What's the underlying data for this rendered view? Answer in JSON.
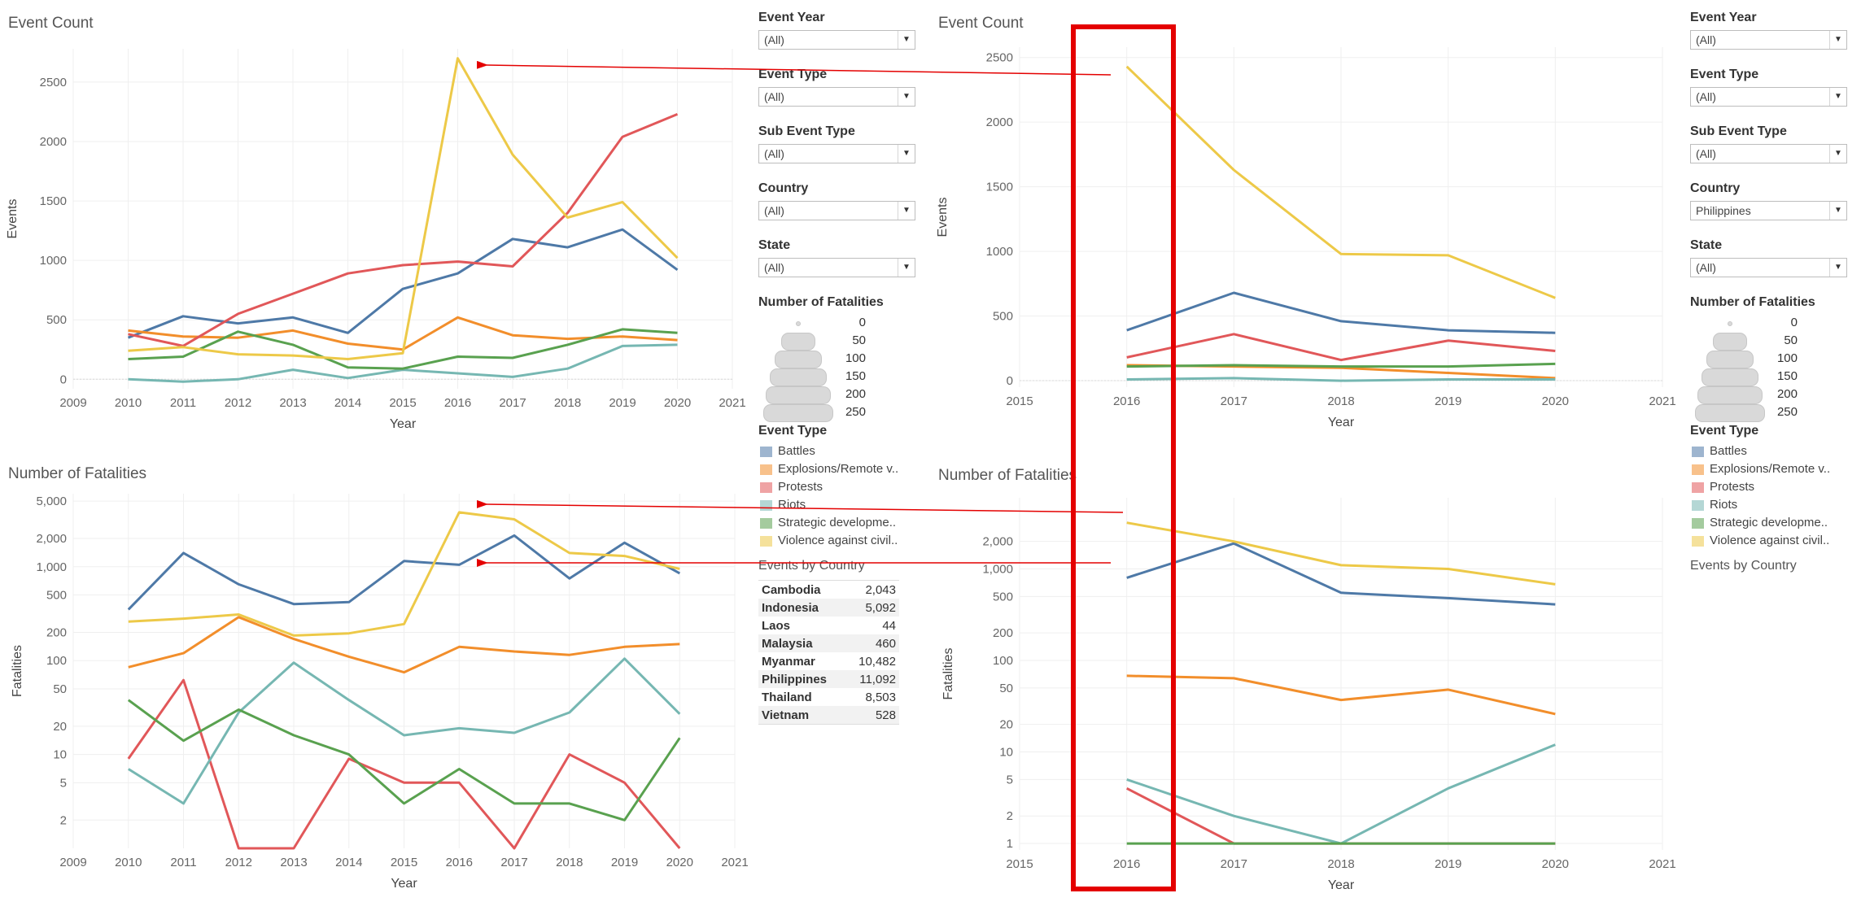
{
  "colors": {
    "Battles": "#4e79a7",
    "Explosions": "#f28e2b",
    "Protests": "#e15759",
    "Riots": "#76b7b2",
    "Strategic": "#59a14f",
    "Violence": "#edc948",
    "arrow": "#e40000"
  },
  "left": {
    "filters": [
      {
        "label": "Event Year",
        "value": "(All)"
      },
      {
        "label": "Event Type",
        "value": "(All)"
      },
      {
        "label": "Sub Event Type",
        "value": "(All)"
      },
      {
        "label": "Country",
        "value": "(All)"
      },
      {
        "label": "State",
        "value": "(All)"
      }
    ],
    "size_legend": {
      "title": "Number of Fatalities",
      "values": [
        "0",
        "50",
        "100",
        "150",
        "200",
        "250"
      ]
    },
    "legend": {
      "title": "Event Type",
      "items": [
        "Battles",
        "Explosions/Remote v..",
        "Protests",
        "Riots",
        "Strategic developme..",
        "Violence against civil.."
      ]
    },
    "countries": {
      "title": "Events by Country",
      "rows": [
        {
          "name": "Cambodia",
          "value": "2,043"
        },
        {
          "name": "Indonesia",
          "value": "5,092"
        },
        {
          "name": "Laos",
          "value": "44"
        },
        {
          "name": "Malaysia",
          "value": "460"
        },
        {
          "name": "Myanmar",
          "value": "10,482"
        },
        {
          "name": "Philippines",
          "value": "11,092"
        },
        {
          "name": "Thailand",
          "value": "8,503"
        },
        {
          "name": "Vietnam",
          "value": "528"
        }
      ]
    }
  },
  "right": {
    "filters": [
      {
        "label": "Event Year",
        "value": "(All)"
      },
      {
        "label": "Event Type",
        "value": "(All)"
      },
      {
        "label": "Sub Event Type",
        "value": "(All)"
      },
      {
        "label": "Country",
        "value": "Philippines"
      },
      {
        "label": "State",
        "value": "(All)"
      }
    ],
    "size_legend": {
      "title": "Number of Fatalities",
      "values": [
        "0",
        "50",
        "100",
        "150",
        "200",
        "250"
      ]
    },
    "legend": {
      "title": "Event Type",
      "items": [
        "Battles",
        "Explosions/Remote v..",
        "Protests",
        "Riots",
        "Strategic developme..",
        "Violence against civil.."
      ]
    },
    "countries": {
      "title": "Events by Country"
    }
  },
  "chart_data": [
    {
      "id": "left-events",
      "type": "line",
      "title": "Event Count",
      "xlabel": "Year",
      "ylabel": "Events",
      "xlim": [
        2009,
        2021
      ],
      "ylim": [
        -80,
        2780
      ],
      "scale": "linear",
      "x_ticks": [
        2009,
        2010,
        2011,
        2012,
        2013,
        2014,
        2015,
        2016,
        2017,
        2018,
        2019,
        2020,
        2021
      ],
      "y_ticks": [
        0,
        500,
        1000,
        1500,
        2000,
        2500
      ],
      "y_tick_labels": [
        "0",
        "500",
        "1000",
        "1500",
        "2000",
        "2500"
      ],
      "x": [
        2010,
        2011,
        2012,
        2013,
        2014,
        2015,
        2016,
        2017,
        2018,
        2019,
        2020
      ],
      "series": [
        {
          "name": "Battles",
          "values": [
            350,
            530,
            470,
            520,
            390,
            760,
            890,
            1180,
            1110,
            1260,
            920
          ]
        },
        {
          "name": "Explosions/Remote v..",
          "values": [
            410,
            360,
            350,
            410,
            300,
            250,
            520,
            370,
            340,
            360,
            330
          ]
        },
        {
          "name": "Protests",
          "values": [
            380,
            280,
            550,
            720,
            890,
            960,
            990,
            950,
            1400,
            2040,
            2230
          ]
        },
        {
          "name": "Riots",
          "values": [
            0,
            -20,
            0,
            80,
            10,
            80,
            50,
            20,
            90,
            280,
            290
          ]
        },
        {
          "name": "Strategic developme..",
          "values": [
            170,
            190,
            400,
            290,
            100,
            90,
            190,
            180,
            290,
            420,
            390
          ]
        },
        {
          "name": "Violence against civil..",
          "values": [
            240,
            270,
            210,
            200,
            170,
            220,
            2700,
            1890,
            1360,
            1490,
            1020
          ]
        }
      ]
    },
    {
      "id": "right-events",
      "type": "line",
      "title": "Event Count",
      "xlabel": "Year",
      "ylabel": "Events",
      "xlim": [
        2015,
        2021
      ],
      "ylim": [
        -50,
        2580
      ],
      "scale": "linear",
      "x_ticks": [
        2015,
        2016,
        2017,
        2018,
        2019,
        2020,
        2021
      ],
      "y_ticks": [
        0,
        500,
        1000,
        1500,
        2000,
        2500
      ],
      "y_tick_labels": [
        "0",
        "500",
        "1000",
        "1500",
        "2000",
        "2500"
      ],
      "x": [
        2016,
        2017,
        2018,
        2019,
        2020
      ],
      "series": [
        {
          "name": "Battles",
          "values": [
            390,
            680,
            460,
            390,
            370
          ]
        },
        {
          "name": "Explosions/Remote v..",
          "values": [
            120,
            110,
            100,
            60,
            20
          ]
        },
        {
          "name": "Protests",
          "values": [
            180,
            360,
            160,
            310,
            230
          ]
        },
        {
          "name": "Riots",
          "values": [
            10,
            20,
            0,
            10,
            10
          ]
        },
        {
          "name": "Strategic developme..",
          "values": [
            110,
            120,
            110,
            110,
            130
          ]
        },
        {
          "name": "Violence against civil..",
          "values": [
            2430,
            1630,
            980,
            970,
            640
          ]
        }
      ]
    },
    {
      "id": "left-fatalities",
      "type": "line",
      "title": "Number of Fatalities",
      "xlabel": "Year",
      "ylabel": "Fatalities",
      "xlim": [
        2009,
        2021
      ],
      "ylim": [
        1,
        6000
      ],
      "scale": "log",
      "x_ticks": [
        2009,
        2010,
        2011,
        2012,
        2013,
        2014,
        2015,
        2016,
        2017,
        2018,
        2019,
        2020,
        2021
      ],
      "y_ticks": [
        2,
        5,
        10,
        20,
        50,
        100,
        200,
        500,
        1000,
        2000,
        5000
      ],
      "y_tick_labels": [
        "2",
        "5",
        "10",
        "20",
        "50",
        "100",
        "200",
        "500",
        "1,000",
        "2,000",
        "5,000"
      ],
      "x": [
        2010,
        2011,
        2012,
        2013,
        2014,
        2015,
        2016,
        2017,
        2018,
        2019,
        2020
      ],
      "series": [
        {
          "name": "Battles",
          "values": [
            350,
            1400,
            650,
            400,
            420,
            1150,
            1050,
            2150,
            750,
            1800,
            850
          ]
        },
        {
          "name": "Explosions/Remote v..",
          "values": [
            85,
            120,
            290,
            170,
            110,
            75,
            140,
            125,
            115,
            140,
            150
          ]
        },
        {
          "name": "Protests",
          "values": [
            9,
            62,
            1,
            1,
            9,
            5,
            5,
            1,
            10,
            5,
            1
          ]
        },
        {
          "name": "Riots",
          "values": [
            7,
            3,
            28,
            95,
            38,
            16,
            19,
            17,
            28,
            105,
            27
          ]
        },
        {
          "name": "Strategic developme..",
          "values": [
            38,
            14,
            30,
            16,
            10,
            3,
            7,
            3,
            3,
            2,
            15
          ]
        },
        {
          "name": "Violence against civil..",
          "values": [
            260,
            280,
            310,
            185,
            195,
            245,
            3800,
            3200,
            1400,
            1300,
            950
          ]
        }
      ]
    },
    {
      "id": "right-fatalities",
      "type": "line",
      "title": "Number of Fatalities",
      "xlabel": "Year",
      "ylabel": "Fatalities",
      "xlim": [
        2015,
        2021
      ],
      "ylim": [
        0.85,
        6000
      ],
      "scale": "log",
      "x_ticks": [
        2015,
        2016,
        2017,
        2018,
        2019,
        2020,
        2021
      ],
      "y_ticks": [
        1,
        2,
        5,
        10,
        20,
        50,
        100,
        200,
        500,
        1000,
        2000
      ],
      "y_tick_labels": [
        "1",
        "2",
        "5",
        "10",
        "20",
        "50",
        "100",
        "200",
        "500",
        "1,000",
        "2,000"
      ],
      "x": [
        2016,
        2017,
        2018,
        2019,
        2020
      ],
      "series": [
        {
          "name": "Battles",
          "values": [
            800,
            1900,
            550,
            480,
            410
          ]
        },
        {
          "name": "Explosions/Remote v..",
          "values": [
            68,
            64,
            37,
            48,
            26
          ]
        },
        {
          "name": "Protests",
          "values": [
            4,
            1,
            1,
            1,
            1
          ]
        },
        {
          "name": "Riots",
          "values": [
            5,
            2,
            1,
            4,
            12
          ]
        },
        {
          "name": "Strategic developme..",
          "values": [
            1,
            1,
            1,
            1,
            1
          ]
        },
        {
          "name": "Violence against civil..",
          "values": [
            3200,
            2000,
            1100,
            1000,
            680
          ]
        }
      ]
    }
  ]
}
